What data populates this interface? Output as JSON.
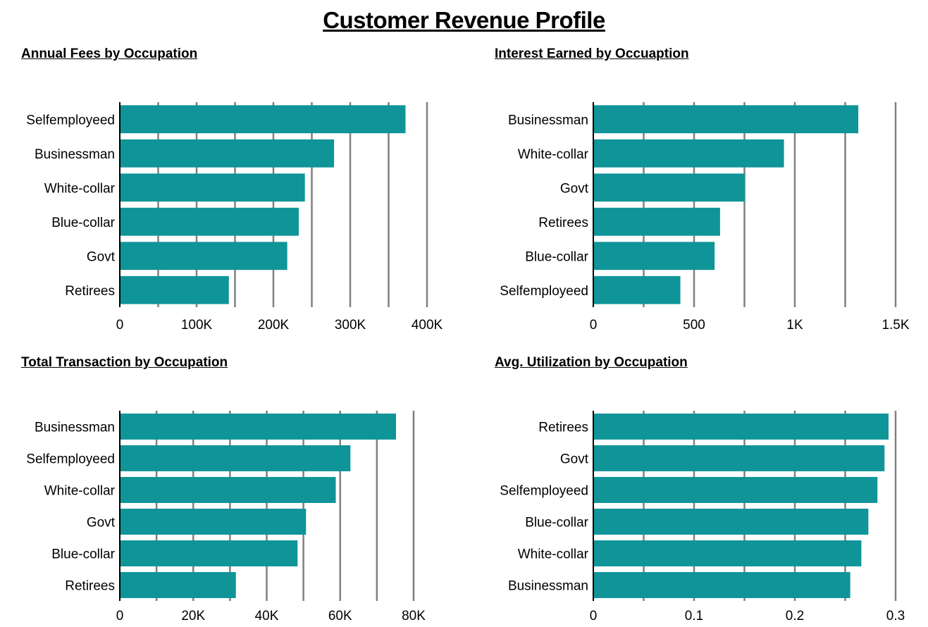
{
  "title": "Customer Revenue Profile",
  "bar_color": "#0f9497",
  "grid_color": "#808080",
  "chart_data": [
    {
      "type": "bar",
      "orientation": "horizontal",
      "title": "Annual Fees by Occupation",
      "categories": [
        "Selfemployeed",
        "Businessman",
        "White-collar",
        "Blue-collar",
        "Govt",
        "Retirees"
      ],
      "values": [
        372000,
        279000,
        241000,
        233000,
        218000,
        142000
      ],
      "xlim": [
        0,
        400000
      ],
      "ticks": [
        0,
        100000,
        200000,
        300000,
        400000
      ],
      "tick_labels": [
        "0",
        "100K",
        "200K",
        "300K",
        "400K"
      ],
      "minor_grid": true,
      "grid": true
    },
    {
      "type": "bar",
      "orientation": "horizontal",
      "title": "Interest Earned by Occuaption",
      "categories": [
        "Businessman",
        "White-collar",
        "Govt",
        "Retirees",
        "Blue-collar",
        "Selfemployeed"
      ],
      "values": [
        1315,
        946,
        752,
        629,
        602,
        432
      ],
      "xlim": [
        0,
        1500
      ],
      "ticks": [
        0,
        500,
        1000,
        1500
      ],
      "tick_labels": [
        "0",
        "500",
        "1K",
        "1.5K"
      ],
      "minor_grid": true,
      "grid": true
    },
    {
      "type": "bar",
      "orientation": "horizontal",
      "title": "Total Transaction by Occupation",
      "categories": [
        "Businessman",
        "Selfemployeed",
        "White-collar",
        "Govt",
        "Blue-collar",
        "Retirees"
      ],
      "values": [
        75200,
        62800,
        58800,
        50700,
        48400,
        31600
      ],
      "xlim": [
        0,
        80000
      ],
      "ticks": [
        0,
        20000,
        40000,
        60000,
        80000
      ],
      "tick_labels": [
        "0",
        "20K",
        "40K",
        "60K",
        "80K"
      ],
      "minor_grid": true,
      "grid": true
    },
    {
      "type": "bar",
      "orientation": "horizontal",
      "title": "Avg. Utilization by Occupation",
      "categories": [
        "Retirees",
        "Govt",
        "Selfemployeed",
        "Blue-collar",
        "White-collar",
        "Businessman"
      ],
      "values": [
        0.293,
        0.289,
        0.282,
        0.273,
        0.266,
        0.255
      ],
      "xlim": [
        0,
        0.3
      ],
      "ticks": [
        0,
        0.1,
        0.2,
        0.3
      ],
      "tick_labels": [
        "0",
        "0.1",
        "0.2",
        "0.3"
      ],
      "minor_grid": true,
      "grid": true
    }
  ]
}
